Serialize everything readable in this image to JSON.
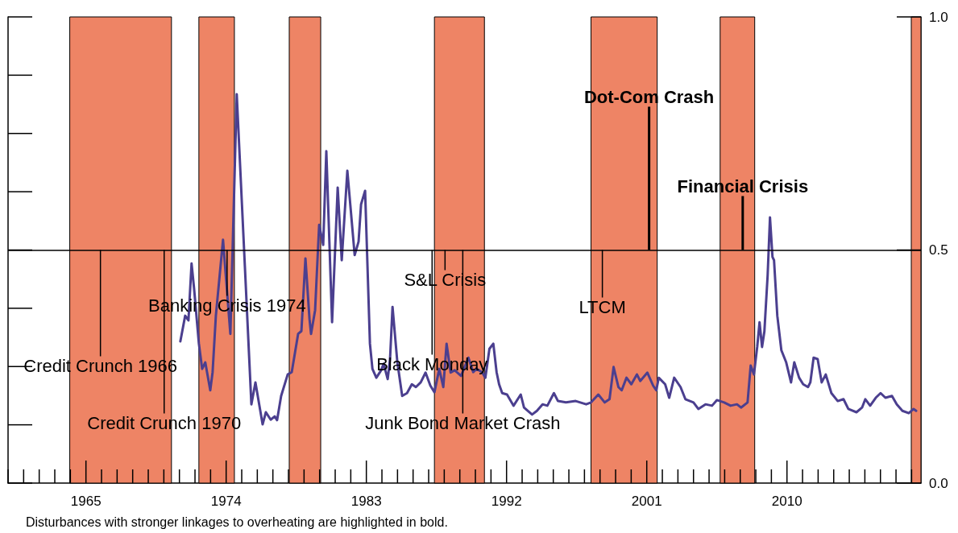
{
  "chart_data": {
    "type": "line",
    "annotations": [
      {
        "text": "Credit Crunch 1966",
        "x": 1965.93,
        "y": 0.5
      },
      {
        "text": "Credit Crunch 1970",
        "x": 1970.02,
        "y": 0.5
      },
      {
        "text": "Banking Crisis 1974",
        "x": 1974.06,
        "y": 0.5
      },
      {
        "text": "Black Monday",
        "x": 1987.22,
        "y": 0.5
      },
      {
        "text": "S&L Crisis",
        "x": 1988.05,
        "y": 0.5
      },
      {
        "text": "Junk Bond Market Crash",
        "x": 1989.19,
        "y": 0.5
      },
      {
        "text": "LTCM",
        "x": 1998.15,
        "y": 0.5
      },
      {
        "text": "Dot-Com Crash",
        "x": 2001.15,
        "y": 0.5
      },
      {
        "text": "Financial Crisis",
        "x": 2007.16,
        "y": 0.5
      },
      "Disturbances with stronger linkages to overheating are highlighted in bold."
    ],
    "series": [
      {
        "color": "#4b3f8f",
        "x": [
          1971.06,
          1971.37,
          1971.58,
          1971.78,
          1971.94,
          1972.25,
          1972.46,
          1972.66,
          1972.98,
          1973.13,
          1973.34,
          1973.8,
          1974.27,
          1974.68,
          1975.2,
          1975.62,
          1975.88,
          1976.34,
          1976.55,
          1976.86,
          1977.12,
          1977.27,
          1977.53,
          1977.95,
          1978.21,
          1978.62,
          1978.83,
          1979.09,
          1979.35,
          1979.45,
          1979.71,
          1979.97,
          1980.23,
          1980.43,
          1980.8,
          1981.16,
          1981.42,
          1981.78,
          1982.25,
          1982.5,
          1982.66,
          1982.92,
          1983.23,
          1983.39,
          1983.64,
          1983.95,
          1984.11,
          1984.37,
          1984.52,
          1984.68,
          1984.99,
          1985.3,
          1985.61,
          1985.92,
          1986.18,
          1986.49,
          1986.8,
          1987.11,
          1987.37,
          1987.68,
          1987.94,
          1988.15,
          1988.41,
          1988.67,
          1989.08,
          1989.55,
          1989.86,
          1990.07,
          1990.43,
          1990.64,
          1990.9,
          1991.15,
          1991.36,
          1991.52,
          1991.72,
          1992.03,
          1992.45,
          1992.91,
          1993.12,
          1993.64,
          1993.95,
          1994.31,
          1994.62,
          1995.04,
          1995.3,
          1995.81,
          1996.44,
          1997.11,
          1997.42,
          1997.89,
          1998.3,
          1998.61,
          1998.87,
          1999.18,
          1999.39,
          1999.7,
          2000.01,
          2000.37,
          2000.58,
          2001.04,
          2001.41,
          2001.61,
          2001.77,
          2002.18,
          2002.44,
          2002.76,
          2003.17,
          2003.48,
          2004.0,
          2004.31,
          2004.77,
          2005.19,
          2005.5,
          2005.97,
          2006.38,
          2006.79,
          2007.05,
          2007.47,
          2007.67,
          2007.88,
          2008.09,
          2008.24,
          2008.4,
          2008.55,
          2008.76,
          2008.91,
          2009.07,
          2009.17,
          2009.38,
          2009.64,
          2009.95,
          2010.26,
          2010.47,
          2010.78,
          2011.04,
          2011.35,
          2011.5,
          2011.71,
          2011.97,
          2012.23,
          2012.49,
          2012.85,
          2013.26,
          2013.63,
          2013.94,
          2014.46,
          2014.82,
          2015.03,
          2015.34,
          2015.7,
          2016.01,
          2016.32,
          2016.74,
          2017.05,
          2017.41,
          2017.82,
          2018.13,
          2018.29
        ],
        "values": [
          0.304,
          0.359,
          0.349,
          0.471,
          0.418,
          0.299,
          0.245,
          0.259,
          0.199,
          0.238,
          0.359,
          0.522,
          0.32,
          0.834,
          0.466,
          0.169,
          0.216,
          0.126,
          0.152,
          0.136,
          0.143,
          0.135,
          0.187,
          0.233,
          0.238,
          0.32,
          0.326,
          0.482,
          0.352,
          0.32,
          0.371,
          0.554,
          0.511,
          0.712,
          0.345,
          0.634,
          0.478,
          0.67,
          0.489,
          0.518,
          0.598,
          0.627,
          0.299,
          0.245,
          0.226,
          0.242,
          0.256,
          0.223,
          0.266,
          0.378,
          0.259,
          0.187,
          0.193,
          0.212,
          0.206,
          0.216,
          0.237,
          0.209,
          0.195,
          0.245,
          0.206,
          0.299,
          0.237,
          0.242,
          0.23,
          0.269,
          0.238,
          0.245,
          0.238,
          0.226,
          0.288,
          0.299,
          0.238,
          0.212,
          0.193,
          0.19,
          0.166,
          0.19,
          0.162,
          0.147,
          0.155,
          0.169,
          0.166,
          0.193,
          0.176,
          0.173,
          0.176,
          0.169,
          0.173,
          0.19,
          0.173,
          0.18,
          0.249,
          0.206,
          0.199,
          0.226,
          0.212,
          0.233,
          0.219,
          0.237,
          0.209,
          0.199,
          0.226,
          0.212,
          0.183,
          0.226,
          0.206,
          0.18,
          0.173,
          0.159,
          0.169,
          0.166,
          0.178,
          0.173,
          0.166,
          0.169,
          0.162,
          0.173,
          0.252,
          0.233,
          0.292,
          0.345,
          0.292,
          0.325,
          0.446,
          0.57,
          0.485,
          0.478,
          0.359,
          0.285,
          0.259,
          0.216,
          0.259,
          0.226,
          0.212,
          0.206,
          0.216,
          0.269,
          0.266,
          0.216,
          0.233,
          0.193,
          0.176,
          0.18,
          0.159,
          0.152,
          0.162,
          0.18,
          0.166,
          0.183,
          0.193,
          0.183,
          0.187,
          0.169,
          0.155,
          0.15,
          0.159,
          0.155
        ]
      }
    ],
    "bands": [
      {
        "axis": "x",
        "from": 1963.96,
        "to": 1970.49,
        "color": "#ee8465"
      },
      {
        "axis": "x",
        "from": 1972.25,
        "to": 1974.53,
        "color": "#ee8465"
      },
      {
        "axis": "x",
        "from": 1978.05,
        "to": 1980.07,
        "color": "#ee8465"
      },
      {
        "axis": "x",
        "from": 1987.37,
        "to": 1990.58,
        "color": "#ee8465"
      },
      {
        "axis": "x",
        "from": 1997.42,
        "to": 2001.67,
        "color": "#ee8465"
      },
      {
        "axis": "x",
        "from": 2005.71,
        "to": 2007.93,
        "color": "#ee8465"
      },
      {
        "axis": "x",
        "from": 2017.98,
        "to": 2018.6,
        "color": "#ee8465"
      }
    ],
    "ref_lines": [
      {
        "axis": "y",
        "value": 0.5
      }
    ],
    "xlim": [
      1960,
      2018.6
    ],
    "xticks": [
      1965,
      1974,
      1983,
      1992,
      2001,
      2010
    ],
    "ylim": [
      0,
      1
    ],
    "yticks": [
      {
        "value": 0,
        "label": "0.0"
      },
      {
        "value": 0.5,
        "label": "0.5"
      },
      {
        "value": 1,
        "label": "1.0"
      }
    ],
    "grid": false,
    "marker": "none",
    "line_style": "solid"
  }
}
